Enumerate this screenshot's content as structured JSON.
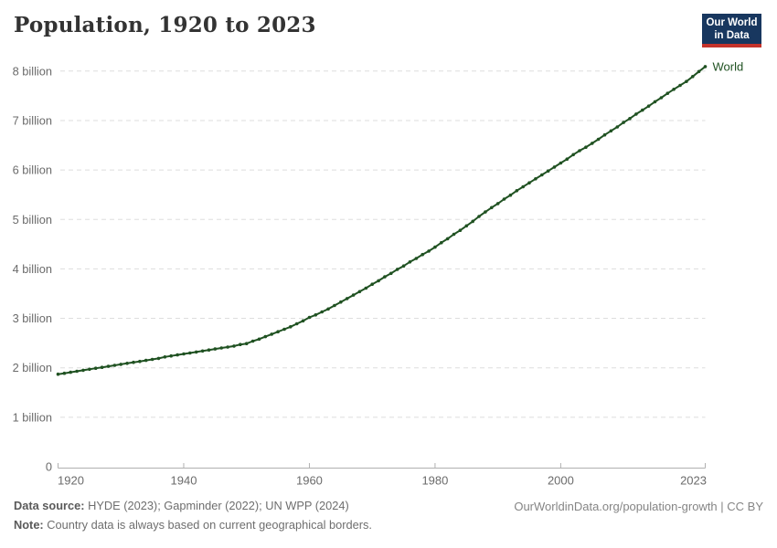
{
  "header": {
    "title": "Population, 1920 to 2023",
    "logo": {
      "line1": "Our World",
      "line2": "in Data"
    }
  },
  "colors": {
    "series_green": "#205222",
    "gridline": "#dddddd",
    "axis": "#b0b0b0",
    "tick_text": "#6b6b6b",
    "title_text": "#333333",
    "logo_bg": "#18375f",
    "logo_red": "#c5332b",
    "footer_text": "#6e6e6e",
    "link_text": "#858585"
  },
  "chart_data": {
    "type": "line",
    "title": "Population, 1920 to 2023",
    "xlabel": "",
    "ylabel": "",
    "x": {
      "start": 1920,
      "end": 2023,
      "step": 1
    },
    "xticks": [
      1920,
      1940,
      1960,
      1980,
      2000,
      2023
    ],
    "yticks": [
      {
        "value": 0,
        "label": "0"
      },
      {
        "value": 1,
        "label": "1 billion"
      },
      {
        "value": 2,
        "label": "2 billion"
      },
      {
        "value": 3,
        "label": "3 billion"
      },
      {
        "value": 4,
        "label": "4 billion"
      },
      {
        "value": 5,
        "label": "5 billion"
      },
      {
        "value": 6,
        "label": "6 billion"
      },
      {
        "value": 7,
        "label": "7 billion"
      },
      {
        "value": 8,
        "label": "8 billion"
      }
    ],
    "ylim": [
      0,
      8.4
    ],
    "grid": "dashed horizontal gridlines, solid baseline axis",
    "legend": "label at end of line",
    "units": "billions of people",
    "series": [
      {
        "name": "World",
        "color": "#205222",
        "values": [
          1.87,
          1.89,
          1.91,
          1.93,
          1.95,
          1.97,
          1.99,
          2.01,
          2.03,
          2.05,
          2.07,
          2.09,
          2.11,
          2.13,
          2.15,
          2.17,
          2.19,
          2.22,
          2.24,
          2.26,
          2.28,
          2.3,
          2.32,
          2.34,
          2.36,
          2.38,
          2.4,
          2.42,
          2.44,
          2.47,
          2.49,
          2.54,
          2.58,
          2.63,
          2.68,
          2.73,
          2.78,
          2.83,
          2.89,
          2.95,
          3.02,
          3.07,
          3.13,
          3.19,
          3.26,
          3.33,
          3.4,
          3.47,
          3.54,
          3.61,
          3.69,
          3.76,
          3.84,
          3.91,
          3.99,
          4.06,
          4.14,
          4.21,
          4.29,
          4.36,
          4.44,
          4.53,
          4.61,
          4.7,
          4.78,
          4.87,
          4.96,
          5.06,
          5.15,
          5.24,
          5.32,
          5.41,
          5.49,
          5.58,
          5.66,
          5.74,
          5.82,
          5.9,
          5.98,
          6.06,
          6.14,
          6.22,
          6.31,
          6.39,
          6.46,
          6.54,
          6.62,
          6.71,
          6.79,
          6.87,
          6.96,
          7.04,
          7.13,
          7.21,
          7.29,
          7.38,
          7.46,
          7.55,
          7.63,
          7.71,
          7.79,
          7.89,
          7.99,
          8.09
        ]
      }
    ]
  },
  "footer": {
    "source_label": "Data source:",
    "source_text": "HYDE (2023); Gapminder (2022); UN WPP (2024)",
    "note_label": "Note:",
    "note_text": "Country data is always based on current geographical borders.",
    "link": "OurWorldinData.org/population-growth | CC BY"
  }
}
